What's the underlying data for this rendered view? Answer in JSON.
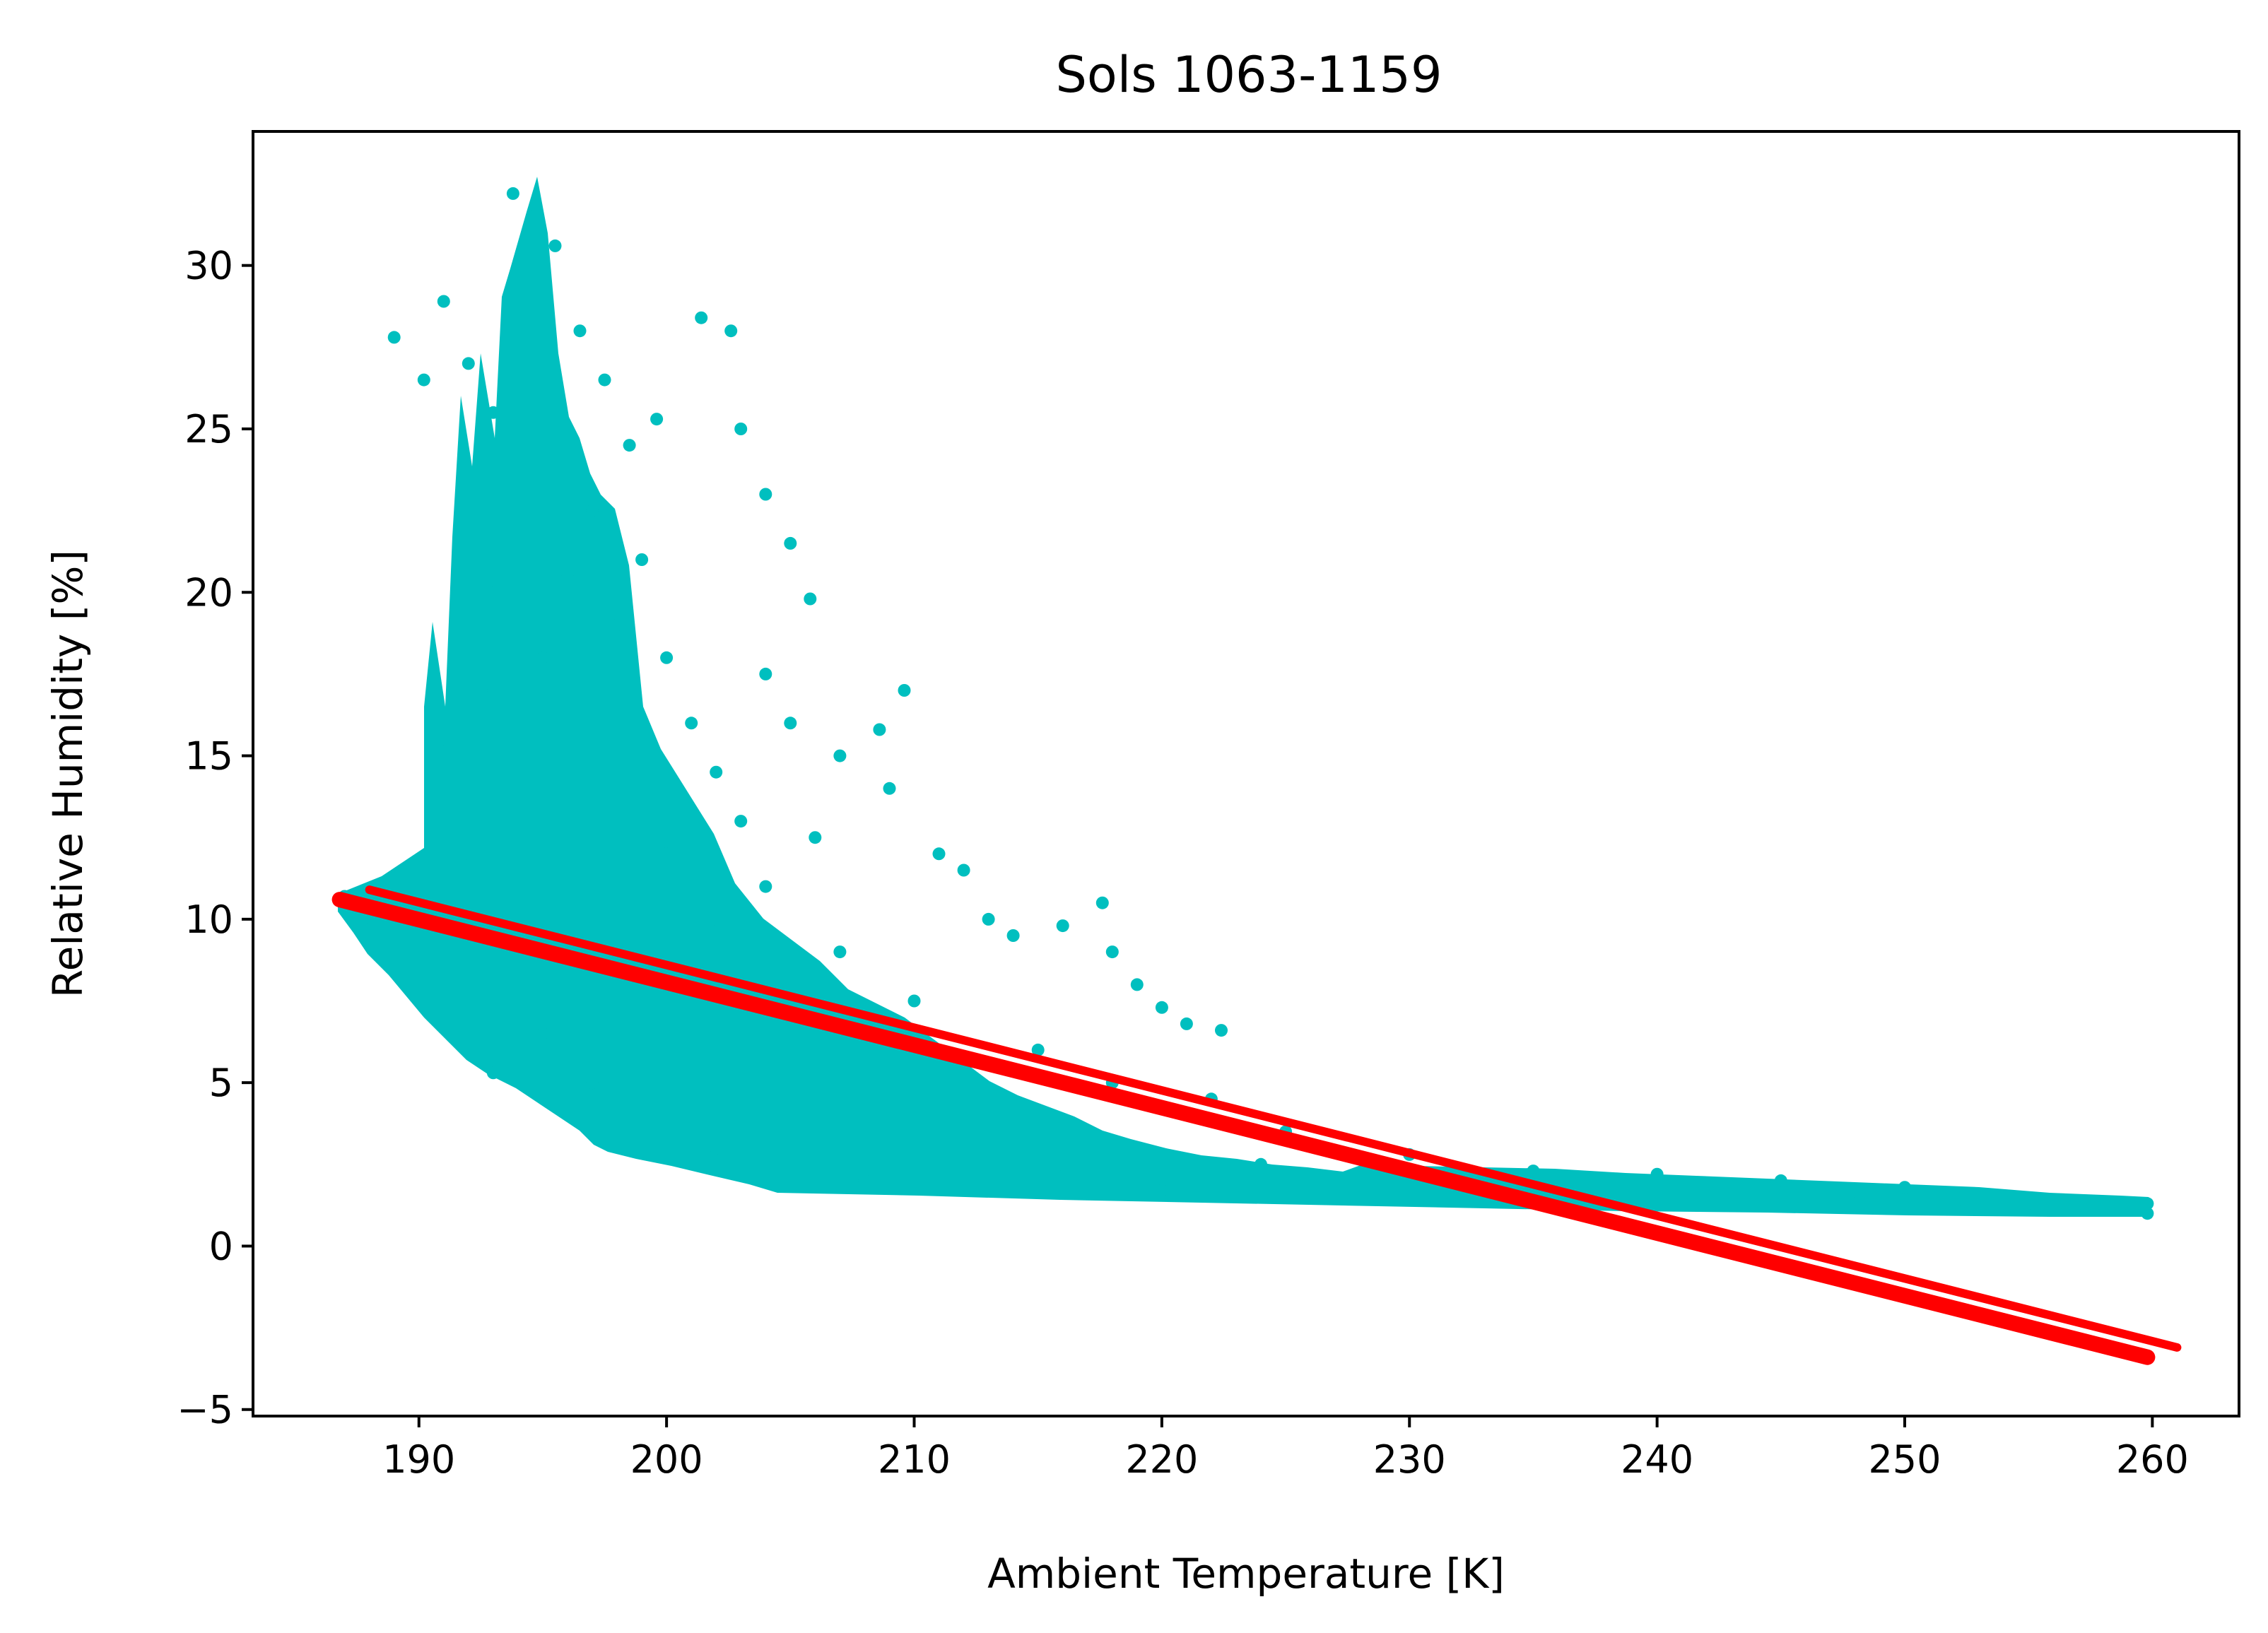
{
  "chart_data": {
    "type": "scatter",
    "title": "Sols 1063-1159",
    "xlabel": "Ambient Temperature [K]",
    "ylabel": "Relative Humidity [%]",
    "xlim": [
      183.3,
      263.5
    ],
    "ylim": [
      -5.2,
      34.1
    ],
    "xticks": [
      190,
      200,
      210,
      220,
      230,
      240,
      250,
      260
    ],
    "yticks": [
      -5,
      0,
      5,
      10,
      15,
      20,
      25,
      30
    ],
    "ytick_labels": [
      "−5",
      "0",
      "5",
      "10",
      "15",
      "20",
      "25",
      "30"
    ],
    "grid": false,
    "legend": "none",
    "series": [
      {
        "kind": "scatter",
        "color": "#00bfbf",
        "points": [
          [
            187.0,
            10.7
          ],
          [
            188.5,
            10.3
          ],
          [
            190.0,
            11.0
          ],
          [
            191.5,
            9.8
          ],
          [
            189.5,
            8.8
          ],
          [
            188.0,
            9.7
          ],
          [
            189.0,
            27.8
          ],
          [
            190.2,
            26.5
          ],
          [
            191.0,
            28.9
          ],
          [
            192.0,
            27.0
          ],
          [
            193.0,
            25.5
          ],
          [
            193.8,
            32.2
          ],
          [
            194.6,
            31.5
          ],
          [
            195.5,
            30.6
          ],
          [
            196.5,
            28.0
          ],
          [
            197.5,
            26.5
          ],
          [
            198.5,
            24.5
          ],
          [
            199.6,
            25.3
          ],
          [
            201.4,
            28.4
          ],
          [
            202.6,
            28.0
          ],
          [
            203.0,
            25.0
          ],
          [
            204.0,
            23.0
          ],
          [
            205.0,
            21.5
          ],
          [
            205.8,
            19.8
          ],
          [
            204.0,
            17.5
          ],
          [
            205.0,
            16.0
          ],
          [
            207.0,
            15.0
          ],
          [
            208.6,
            15.8
          ],
          [
            209.6,
            17.0
          ],
          [
            209.0,
            14.0
          ],
          [
            211.0,
            12.0
          ],
          [
            212.0,
            11.5
          ],
          [
            213.0,
            10.0
          ],
          [
            214.0,
            9.5
          ],
          [
            216.0,
            9.8
          ],
          [
            217.6,
            10.5
          ],
          [
            218.0,
            9.0
          ],
          [
            219.0,
            8.0
          ],
          [
            220.0,
            7.3
          ],
          [
            221.0,
            6.8
          ],
          [
            222.4,
            6.6
          ],
          [
            191.0,
            15.5
          ],
          [
            192.0,
            14.0
          ],
          [
            192.0,
            12.0
          ],
          [
            192.8,
            10.5
          ],
          [
            193.0,
            17.0
          ],
          [
            193.0,
            20.0
          ],
          [
            194.0,
            22.0
          ],
          [
            195.0,
            18.0
          ],
          [
            196.0,
            20.5
          ],
          [
            197.0,
            22.5
          ],
          [
            198.0,
            19.0
          ],
          [
            199.0,
            21.0
          ],
          [
            200.0,
            18.0
          ],
          [
            201.0,
            16.0
          ],
          [
            202.0,
            14.5
          ],
          [
            203.0,
            13.0
          ],
          [
            200.0,
            12.0
          ],
          [
            202.0,
            10.0
          ],
          [
            204.0,
            11.0
          ],
          [
            206.0,
            12.5
          ],
          [
            198.0,
            8.0
          ],
          [
            200.0,
            6.0
          ],
          [
            197.0,
            5.0
          ],
          [
            195.0,
            6.5
          ],
          [
            193.0,
            5.3
          ],
          [
            200.0,
            4.0
          ],
          [
            202.0,
            3.0
          ],
          [
            205.0,
            2.3
          ],
          [
            208.0,
            2.0
          ],
          [
            212.0,
            1.8
          ],
          [
            216.0,
            2.5
          ],
          [
            220.0,
            1.7
          ],
          [
            224.0,
            2.5
          ],
          [
            228.0,
            1.6
          ],
          [
            232.0,
            2.0
          ],
          [
            236.0,
            1.9
          ],
          [
            240.0,
            1.5
          ],
          [
            244.0,
            1.6
          ],
          [
            248.0,
            1.3
          ],
          [
            252.0,
            1.2
          ],
          [
            256.0,
            1.1
          ],
          [
            259.8,
            1.0
          ],
          [
            225.0,
            3.5
          ],
          [
            230.0,
            2.8
          ],
          [
            235.0,
            2.3
          ],
          [
            240.0,
            2.2
          ],
          [
            245.0,
            2.0
          ],
          [
            250.0,
            1.8
          ],
          [
            255.0,
            1.3
          ],
          [
            259.8,
            1.3
          ],
          [
            215.0,
            6.0
          ],
          [
            218.0,
            5.0
          ],
          [
            222.0,
            4.5
          ],
          [
            210.0,
            7.5
          ],
          [
            207.0,
            9.0
          ]
        ]
      },
      {
        "kind": "line",
        "color": "#ff0000",
        "x": [
          186.8,
          259.8
        ],
        "y": [
          10.6,
          -3.4
        ]
      }
    ]
  }
}
